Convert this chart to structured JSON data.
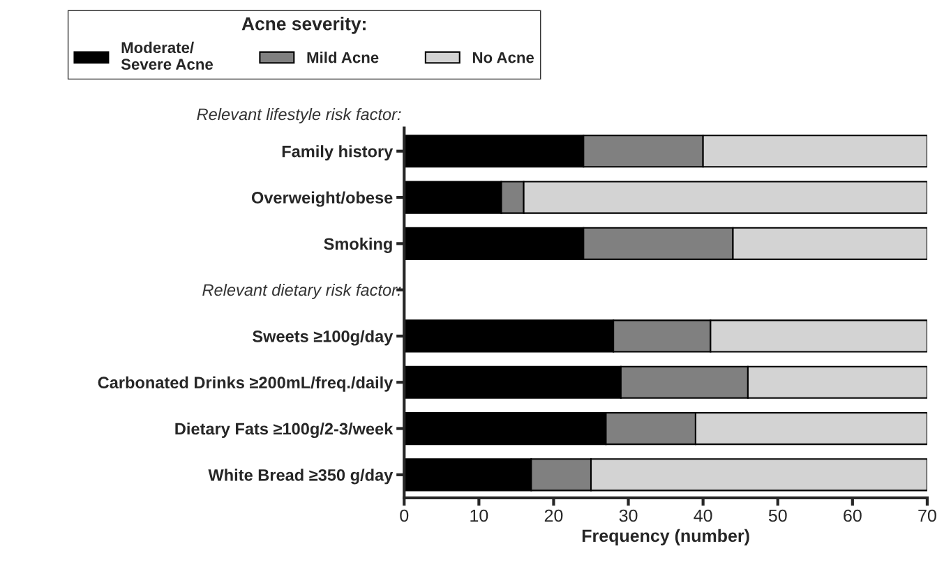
{
  "chart_data": {
    "type": "bar",
    "orientation": "horizontal",
    "stacked": true,
    "categories": [
      "Family history",
      "Overweight/obese",
      "Smoking",
      null,
      "Sweets ≥100g/day",
      "Carbonated Drinks ≥200mL/freq./daily",
      "Dietary Fats ≥100g/2-3/week",
      "White Bread ≥350 g/day"
    ],
    "series": [
      {
        "name": "Moderate/\nSevere Acne",
        "color": "#000000",
        "values": [
          24,
          13,
          24,
          null,
          28,
          29,
          27,
          17
        ]
      },
      {
        "name": "Mild Acne",
        "color": "#808080",
        "values": [
          16,
          3,
          20,
          null,
          13,
          17,
          12,
          8
        ]
      },
      {
        "name": "No Acne",
        "color": "#d3d3d3",
        "values": [
          30,
          54,
          26,
          null,
          29,
          24,
          31,
          45
        ]
      }
    ],
    "xlabel": "Frequency (number)",
    "legend_title": "Acne severity:",
    "legend": "top",
    "xlim": [
      0,
      70
    ],
    "xticks": [
      0,
      10,
      20,
      30,
      40,
      50,
      60,
      70
    ],
    "grid": false,
    "annotations": [
      "Relevant lifestyle risk factor:",
      "Relevant dietary risk factor:"
    ]
  }
}
